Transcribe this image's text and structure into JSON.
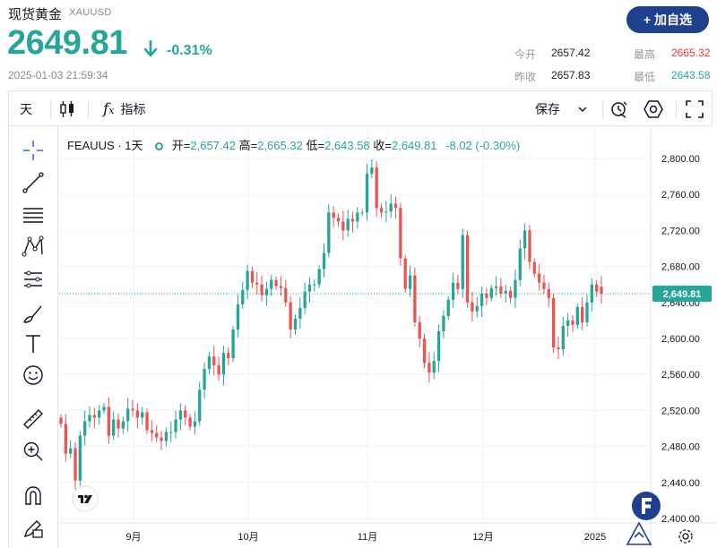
{
  "header": {
    "title": "现货黄金",
    "symbol": "XAUUSD",
    "price": "2649.81",
    "change_pct": "-0.31%",
    "datetime": "2025-01-03 21:59:34",
    "watch_button": "+ 加自选",
    "quote": {
      "open_label": "今开",
      "open_value": "2657.42",
      "high_label": "最高",
      "high_value": "2665.32",
      "prev_close_label": "昨收",
      "prev_close_value": "2657.83",
      "low_label": "最低",
      "low_value": "2643.58"
    },
    "colors": {
      "up": "#26a69a",
      "down": "#ef5350",
      "brand": "#1f3f8f"
    }
  },
  "toolbar": {
    "interval": "天",
    "candle_icon": "candlestick-icon",
    "indicator_icon": "fx-icon",
    "indicator_label": "指标",
    "save_label": "保存",
    "right_icons": [
      "alert-clock-icon",
      "settings-hexagon-icon",
      "fullscreen-icon"
    ]
  },
  "sidebar": {
    "tools": [
      "crosshair-icon",
      "trendline-icon",
      "fib-icon",
      "pattern-icon",
      "prediction-icon",
      "brush-icon",
      "text-icon",
      "emoji-icon",
      "ruler-icon",
      "zoom-in-icon",
      "magnet-icon",
      "lock-pencil-icon"
    ]
  },
  "legend": {
    "symbol": "FEAUUS · 1天",
    "open_label": "开",
    "open": "2,657.42",
    "high_label": "高",
    "high": "2,665.32",
    "low_label": "低",
    "low": "2,643.58",
    "close_label": "收",
    "close": "2,649.81",
    "change": "-8.02 (-0.30%)"
  },
  "chart_data": {
    "type": "candlestick",
    "x_ticks": [
      "9月",
      "10月",
      "11月",
      "12月",
      "2025"
    ],
    "y_ticks": [
      "2,800.00",
      "2,760.00",
      "2,720.00",
      "2,680.00",
      "2,640.00",
      "2,600.00",
      "2,560.00",
      "2,520.00",
      "2,480.00",
      "2,440.00",
      "2,400.00"
    ],
    "ylim": [
      2400,
      2800
    ],
    "last_price_label": "2,649.81",
    "last_price": 2649.81,
    "closes": [
      2505,
      2472,
      2478,
      2442,
      2492,
      2508,
      2515,
      2512,
      2520,
      2524,
      2492,
      2510,
      2500,
      2508,
      2522,
      2520,
      2512,
      2518,
      2498,
      2495,
      2490,
      2486,
      2496,
      2496,
      2510,
      2520,
      2512,
      2502,
      2508,
      2543,
      2566,
      2580,
      2570,
      2560,
      2584,
      2578,
      2610,
      2638,
      2654,
      2675,
      2662,
      2660,
      2648,
      2655,
      2665,
      2658,
      2656,
      2640,
      2610,
      2622,
      2634,
      2652,
      2660,
      2660,
      2677,
      2695,
      2740,
      2734,
      2730,
      2720,
      2733,
      2730,
      2740,
      2740,
      2783,
      2790,
      2745,
      2740,
      2741,
      2750,
      2745,
      2689,
      2655,
      2670,
      2618,
      2600,
      2573,
      2562,
      2575,
      2608,
      2625,
      2643,
      2662,
      2655,
      2715,
      2640,
      2630,
      2636,
      2650,
      2645,
      2656,
      2658,
      2650,
      2653,
      2645,
      2665,
      2700,
      2720,
      2685,
      2672,
      2662,
      2655,
      2645,
      2590,
      2588,
      2614,
      2620,
      2615,
      2635,
      2618,
      2640,
      2660,
      2652,
      2649.81
    ],
    "opens": [
      2512,
      2505,
      2472,
      2478,
      2442,
      2492,
      2508,
      2515,
      2512,
      2520,
      2524,
      2492,
      2510,
      2500,
      2508,
      2522,
      2520,
      2512,
      2518,
      2498,
      2495,
      2490,
      2486,
      2496,
      2496,
      2510,
      2520,
      2512,
      2502,
      2508,
      2543,
      2566,
      2580,
      2570,
      2560,
      2584,
      2578,
      2610,
      2638,
      2654,
      2675,
      2662,
      2660,
      2648,
      2655,
      2665,
      2658,
      2656,
      2640,
      2610,
      2622,
      2634,
      2652,
      2660,
      2660,
      2677,
      2695,
      2740,
      2734,
      2730,
      2720,
      2733,
      2730,
      2740,
      2740,
      2783,
      2790,
      2745,
      2740,
      2741,
      2750,
      2745,
      2689,
      2655,
      2670,
      2618,
      2600,
      2573,
      2562,
      2575,
      2608,
      2625,
      2643,
      2662,
      2655,
      2715,
      2640,
      2630,
      2636,
      2650,
      2645,
      2656,
      2658,
      2650,
      2653,
      2645,
      2665,
      2700,
      2720,
      2685,
      2672,
      2662,
      2655,
      2645,
      2590,
      2588,
      2614,
      2620,
      2615,
      2635,
      2618,
      2640,
      2660,
      2657.42
    ]
  },
  "footer_icons": [
    "tradingview-logo",
    "brand-f-logo"
  ]
}
